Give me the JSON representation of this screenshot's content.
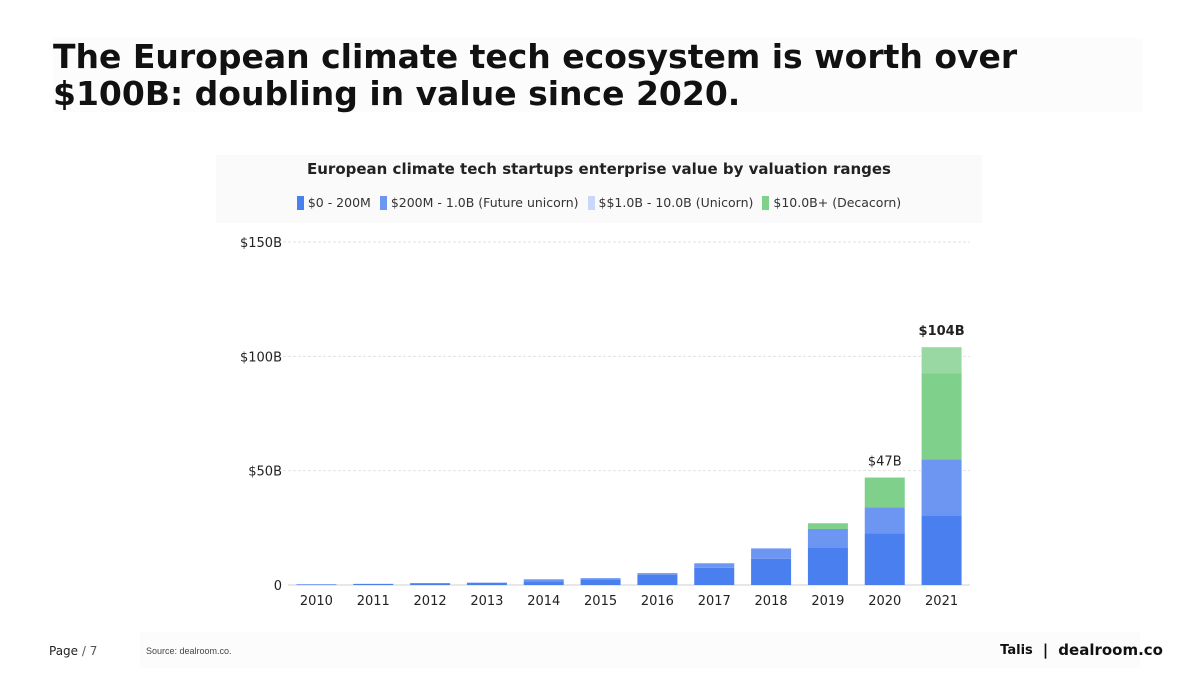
{
  "slide": {
    "headline": "The European climate tech ecosystem is worth over $100B: doubling in value since 2020.",
    "page_label": "Page",
    "page_number": "/ 7",
    "source": "Source: dealroom.co.",
    "brand_left": "Talis",
    "brand_separator": "|",
    "brand_right": "dealroom.co"
  },
  "colors": {
    "0-200M": "#4a7ff0",
    "200M-1B": "#6d95f2",
    "1B-10B": "#c9d8fa",
    "10B+": "#7fd08b"
  },
  "chart_data": {
    "type": "bar",
    "stacked": true,
    "title": "European climate tech startups enterprise value by valuation ranges",
    "legend_placement": "top",
    "categories": [
      "2010",
      "2011",
      "2012",
      "2013",
      "2014",
      "2015",
      "2016",
      "2017",
      "2018",
      "2019",
      "2020",
      "2021"
    ],
    "series": [
      {
        "name": "$0 - 200M",
        "color": "#4a7ff0",
        "values": [
          0.3,
          0.5,
          0.8,
          1.0,
          1.5,
          2.5,
          4.5,
          7.5,
          11.5,
          16.5,
          22.5,
          30.5
        ]
      },
      {
        "name": "$200M - 1.0B (Future unicorn)",
        "color": "#6d95f2",
        "values": [
          0,
          0,
          0,
          0,
          1.0,
          0.5,
          0.7,
          2.0,
          4.5,
          8.0,
          11.5,
          24.5
        ]
      },
      {
        "name": "$$1.0B - 10.0B (Unicorn)",
        "color": "#c9d8fa",
        "values": [
          0,
          0,
          0,
          0,
          0,
          0,
          0,
          0,
          0,
          0,
          0,
          0
        ]
      },
      {
        "name": "$10.0B+ (Decacorn)",
        "color": "#7fd08b",
        "values": [
          0,
          0,
          0,
          0,
          0,
          0,
          0,
          0,
          0,
          2.5,
          13.0,
          37.5
        ]
      },
      {
        "name": "",
        "color": "#9ad8a3",
        "values": [
          0,
          0,
          0,
          0,
          0,
          0,
          0,
          0,
          0,
          0,
          0,
          11.5
        ]
      }
    ],
    "total_labels": [
      {
        "category": "2020",
        "value": 47,
        "text": "$47B",
        "bold": false
      },
      {
        "category": "2021",
        "value": 104,
        "text": "$104B",
        "bold": true
      }
    ],
    "y_ticks": [
      {
        "value": 0,
        "label": "0"
      },
      {
        "value": 50,
        "label": "$50B"
      },
      {
        "value": 100,
        "label": "$100B"
      },
      {
        "value": 150,
        "label": "$150B"
      }
    ],
    "ylim": [
      0,
      150
    ],
    "grid": true,
    "xlabel": "",
    "ylabel": ""
  }
}
